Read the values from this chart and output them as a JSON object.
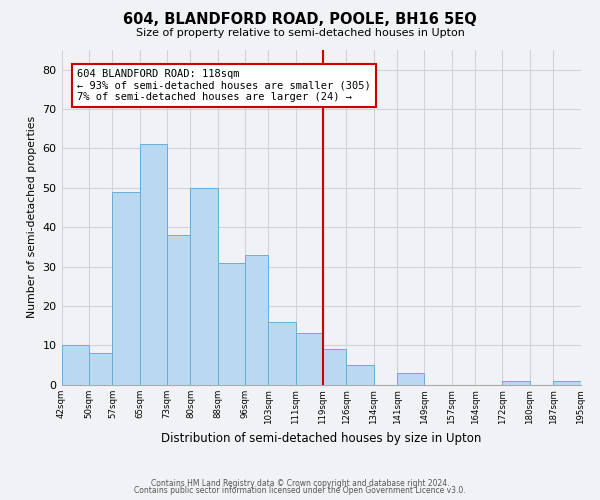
{
  "title": "604, BLANDFORD ROAD, POOLE, BH16 5EQ",
  "subtitle": "Size of property relative to semi-detached houses in Upton",
  "xlabel": "Distribution of semi-detached houses by size in Upton",
  "ylabel": "Number of semi-detached properties",
  "footer_line1": "Contains HM Land Registry data © Crown copyright and database right 2024.",
  "footer_line2": "Contains public sector information licensed under the Open Government Licence v3.0.",
  "annotation_title": "604 BLANDFORD ROAD: 118sqm",
  "annotation_line1": "← 93% of semi-detached houses are smaller (305)",
  "annotation_line2": "7% of semi-detached houses are larger (24) →",
  "property_line_x": 119,
  "bar_edges": [
    42,
    50,
    57,
    65,
    73,
    80,
    88,
    96,
    103,
    111,
    119,
    126,
    134,
    141,
    149,
    157,
    164,
    172,
    180,
    187,
    195
  ],
  "bar_heights": [
    10,
    8,
    49,
    61,
    38,
    50,
    31,
    33,
    16,
    13,
    9,
    5,
    0,
    3,
    0,
    0,
    0,
    1,
    0,
    1
  ],
  "bar_color": "#b8d9f0",
  "bar_edge_color": "#6aaed6",
  "grid_color": "#d0d3d8",
  "line_color": "#cc0000",
  "annotation_box_edge": "#cc0000",
  "background_color": "#f0f2f5",
  "ylim": [
    0,
    85
  ],
  "yticks": [
    0,
    10,
    20,
    30,
    40,
    50,
    60,
    70,
    80
  ]
}
